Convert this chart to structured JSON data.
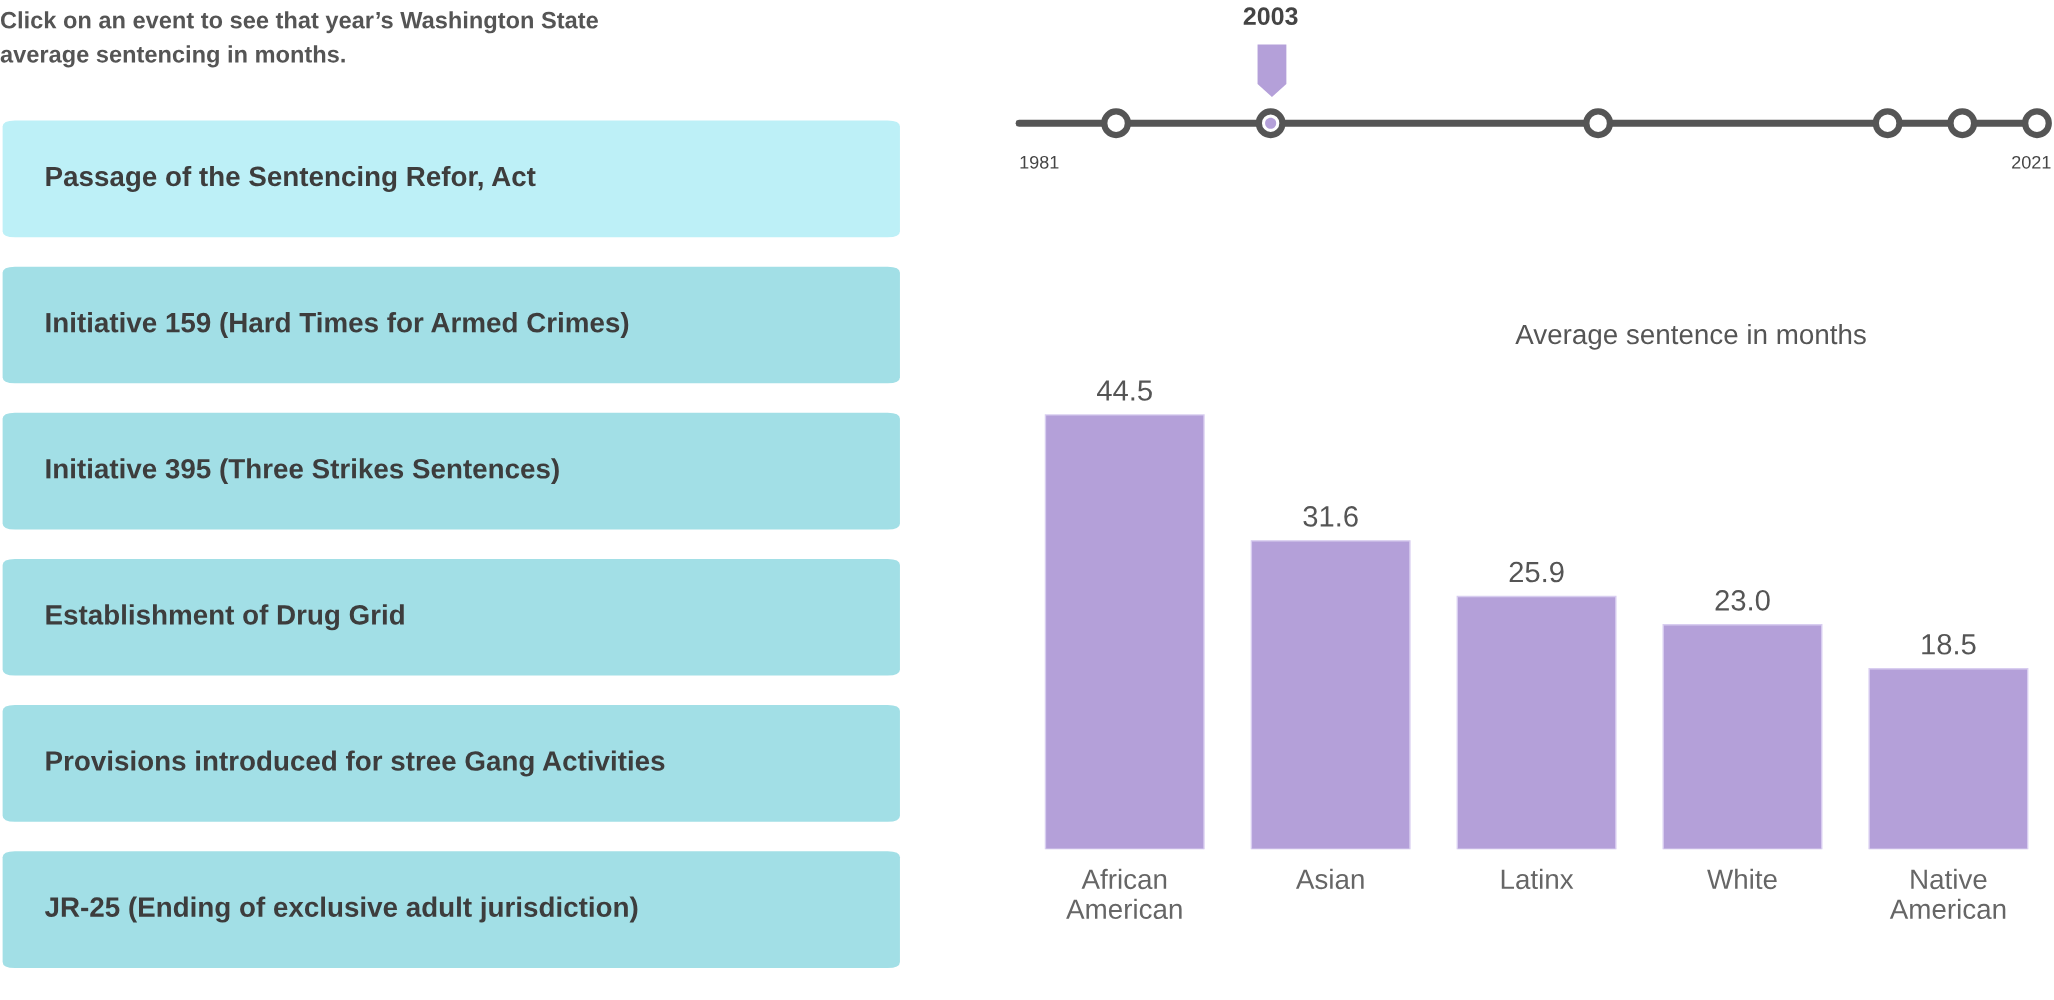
{
  "chart_data": [
    {
      "type": "other",
      "title": "Click on an event to see that year’s Washington State\naverage sentencing in months.",
      "categories": [
        "Passage of the Sentencing Refor, Act",
        "Initiative 159 (Hard Times for Armed Crimes)",
        "Initiative 395 (Three Strikes Sentences)",
        "Establishment of Drug Grid",
        "Provisions introduced for stree Gang Activities",
        "JR-25 (Ending of exclusive adult jurisdiction)"
      ],
      "colors": [
        "#bdf0f7",
        "#a2dfe6",
        "#a2dfe6",
        "#a2dfe6",
        "#a2dfe6",
        "#a2dfe6"
      ],
      "annotations": [
        "2003",
        "1981",
        "2021"
      ]
    },
    {
      "type": "bar",
      "title": "Average sentence in months",
      "categories": [
        "African American",
        "Asian",
        "Latinx",
        "White",
        "Native American"
      ],
      "values": [
        44.5,
        31.6,
        25.9,
        23.0,
        18.5
      ],
      "value_labels": [
        "44.5",
        "31.6",
        "25.9",
        "23.0",
        "18.5"
      ],
      "color": "#b4a0d9"
    }
  ]
}
